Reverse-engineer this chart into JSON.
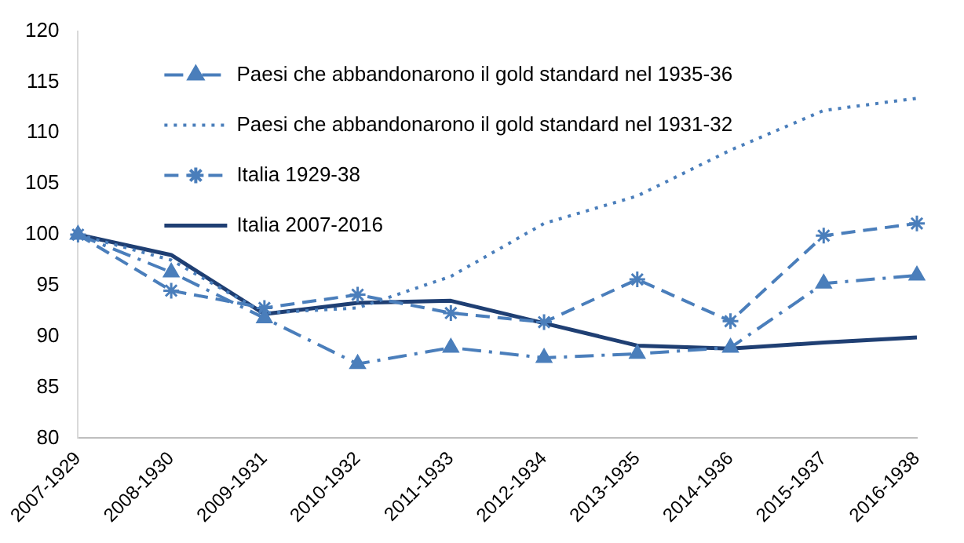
{
  "chart_data": {
    "type": "line",
    "categories": [
      "2007-1929",
      "2008-1930",
      "2009-1931",
      "2010-1932",
      "2011-1933",
      "2012-1934",
      "2013-1935",
      "2014-1936",
      "2015-1937",
      "2016-1938"
    ],
    "series": [
      {
        "name": "Paesi che abbandonarono il gold standard nel 1935-36",
        "color": "#4a7ebb",
        "marker": "triangle",
        "line_style": "dashdot",
        "values": [
          100,
          96.3,
          91.8,
          87.3,
          88.9,
          87.9,
          88.3,
          88.9,
          95.2,
          96
        ]
      },
      {
        "name": "Paesi che abbandonarono il gold standard nel 1931-32",
        "color": "#4a7ebb",
        "marker": "none",
        "line_style": "dotted",
        "values": [
          100,
          97.5,
          92.3,
          92.8,
          95.9,
          101.1,
          103.8,
          108.3,
          112.2,
          113.4
        ]
      },
      {
        "name": "Italia 1929-38",
        "color": "#4a7ebb",
        "marker": "cross",
        "line_style": "dashed",
        "values": [
          100,
          94.5,
          92.8,
          94.1,
          92.3,
          91.4,
          95.6,
          91.5,
          99.9,
          101.1
        ]
      },
      {
        "name": "Italia 2007-2016",
        "color": "#1f3f73",
        "marker": "none",
        "line_style": "solid",
        "values": [
          100,
          98,
          92.2,
          93.3,
          93.5,
          91.3,
          89.1,
          88.8,
          89.4,
          89.9
        ]
      }
    ],
    "ylim": [
      80,
      120
    ],
    "yticks": [
      80,
      85,
      90,
      95,
      100,
      105,
      110,
      115,
      120
    ],
    "grid": false,
    "legend": "top left"
  }
}
